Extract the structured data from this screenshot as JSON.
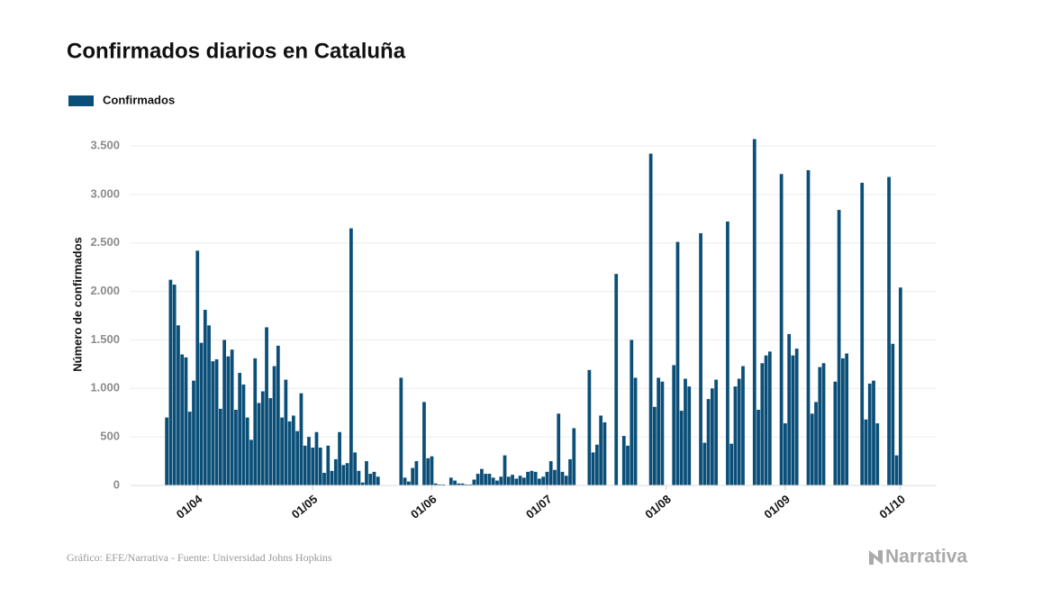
{
  "chart_data": {
    "type": "bar",
    "title": "Confirmados diarios en Cataluña",
    "y_label": "Número de confirmados",
    "source": "Gráfico: EFE/Narrativa - Fuente: Universidad Johns Hopkins",
    "logo": "Narrativa",
    "series": [
      {
        "name": "Confirmados",
        "color": "#0b4f78",
        "values": [
          700,
          2120,
          2070,
          1650,
          1350,
          1320,
          760,
          1080,
          2420,
          1470,
          1810,
          1650,
          1280,
          1300,
          790,
          1500,
          1330,
          1400,
          780,
          1160,
          1040,
          700,
          470,
          1310,
          850,
          970,
          1630,
          900,
          1230,
          1440,
          700,
          1090,
          660,
          720,
          560,
          950,
          410,
          500,
          390,
          550,
          390,
          130,
          410,
          150,
          270,
          550,
          210,
          230,
          2650,
          340,
          150,
          30,
          250,
          120,
          140,
          90,
          0,
          0,
          0,
          0,
          0,
          1110,
          80,
          40,
          180,
          250,
          0,
          860,
          280,
          300,
          20,
          10,
          10,
          0,
          80,
          50,
          20,
          20,
          10,
          10,
          60,
          120,
          170,
          120,
          120,
          80,
          50,
          90,
          310,
          90,
          110,
          70,
          100,
          80,
          140,
          150,
          140,
          70,
          90,
          140,
          250,
          160,
          740,
          140,
          100,
          270,
          590,
          0,
          0,
          0,
          1190,
          340,
          420,
          720,
          650,
          0,
          0,
          2180,
          0,
          510,
          410,
          1500,
          1110,
          0,
          0,
          0,
          3420,
          810,
          1110,
          1070,
          0,
          0,
          1240,
          2510,
          770,
          1100,
          1020,
          0,
          0,
          2600,
          440,
          890,
          1000,
          1090,
          0,
          0,
          2720,
          430,
          1020,
          1100,
          1230,
          0,
          0,
          3570,
          780,
          1260,
          1340,
          1380,
          0,
          0,
          3210,
          640,
          1560,
          1340,
          1410,
          0,
          0,
          3250,
          740,
          860,
          1220,
          1260,
          0,
          0,
          1070,
          2840,
          1310,
          1360,
          0,
          0,
          0,
          3120,
          680,
          1050,
          1080,
          640,
          0,
          0,
          3180,
          1460,
          310,
          2040
        ]
      }
    ],
    "categories": [
      null,
      null,
      null,
      null,
      null,
      null,
      null,
      null,
      "01/04",
      null,
      null,
      null,
      null,
      null,
      null,
      null,
      null,
      null,
      null,
      null,
      null,
      null,
      null,
      null,
      null,
      null,
      null,
      null,
      null,
      null,
      null,
      null,
      null,
      null,
      null,
      null,
      null,
      null,
      "01/05",
      null,
      null,
      null,
      null,
      null,
      null,
      null,
      null,
      null,
      null,
      null,
      null,
      null,
      null,
      null,
      null,
      null,
      null,
      null,
      null,
      null,
      null,
      null,
      null,
      null,
      null,
      null,
      null,
      null,
      null,
      "01/06",
      null,
      null,
      null,
      null,
      null,
      null,
      null,
      null,
      null,
      null,
      null,
      null,
      null,
      null,
      null,
      null,
      null,
      null,
      null,
      null,
      null,
      null,
      null,
      null,
      null,
      null,
      null,
      null,
      null,
      "01/07",
      null,
      null,
      null,
      null,
      null,
      null,
      null,
      null,
      null,
      null,
      null,
      null,
      null,
      null,
      null,
      null,
      null,
      null,
      null,
      null,
      null,
      null,
      null,
      null,
      null,
      null,
      null,
      null,
      null,
      null,
      "01/08",
      null,
      null,
      null,
      null,
      null,
      null,
      null,
      null,
      null,
      null,
      null,
      null,
      null,
      null,
      null,
      null,
      null,
      null,
      null,
      null,
      null,
      null,
      null,
      null,
      null,
      null,
      null,
      null,
      null,
      null,
      "01/09",
      null,
      null,
      null,
      null,
      null,
      null,
      null,
      null,
      null,
      null,
      null,
      null,
      null,
      null,
      null,
      null,
      null,
      null,
      null,
      null,
      null,
      null,
      null,
      null,
      null,
      null,
      null,
      null,
      null,
      "01/10"
    ],
    "ylim": [
      0,
      3500
    ],
    "yticks": [
      0,
      500,
      {
        "value": 1000,
        "label": "1.000"
      },
      {
        "value": 1500,
        "label": "1.500"
      },
      {
        "value": 2000,
        "label": "2.000"
      },
      {
        "value": 2500,
        "label": "2.500"
      },
      {
        "value": 3000,
        "label": "3.000"
      },
      {
        "value": 3500,
        "label": "3.500"
      }
    ],
    "grid": true,
    "legend": "top-left"
  }
}
